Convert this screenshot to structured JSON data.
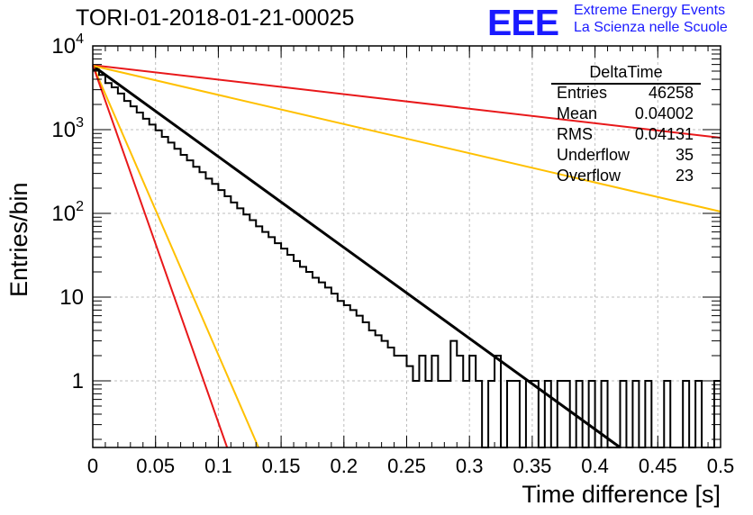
{
  "header": {
    "title": "TORI-01-2018-01-21-00025",
    "logo_text": "EEE",
    "logo_line1": "Extreme Energy Events",
    "logo_line2": "La Scienza nelle Scuole"
  },
  "stats_box": {
    "title": "DeltaTime",
    "rows": [
      {
        "key": "Entries",
        "value": "46258"
      },
      {
        "key": "Mean",
        "value": "0.04002"
      },
      {
        "key": "RMS",
        "value": "0.04131"
      },
      {
        "key": "Underflow",
        "value": "35"
      },
      {
        "key": "Overflow",
        "value": "23"
      }
    ]
  },
  "colors": {
    "histogram": "#000000",
    "fit_main": "#000000",
    "fit_red": "#e8181a",
    "fit_orange": "#ffc000",
    "grid": "#bdbdbd",
    "logo": "#1a1aff"
  },
  "chart_data": {
    "type": "line",
    "xlabel": "Time difference [s]",
    "ylabel": "Entries/bin",
    "xlim": [
      0,
      0.5
    ],
    "ylim": [
      0.16,
      10000
    ],
    "ylog": true,
    "grid": true,
    "x_ticks": [
      "0",
      "0.05",
      "0.1",
      "0.15",
      "0.2",
      "0.25",
      "0.3",
      "0.35",
      "0.4",
      "0.45",
      "0.5"
    ],
    "y_ticks": [
      "1",
      "10",
      "10^2",
      "10^3",
      "10^4"
    ],
    "histogram": {
      "bin_width": 0.005,
      "counts": [
        5200,
        4500,
        3600,
        3200,
        2700,
        2200,
        1900,
        1600,
        1350,
        1150,
        980,
        820,
        700,
        590,
        500,
        430,
        360,
        310,
        260,
        225,
        190,
        160,
        135,
        115,
        97,
        83,
        70,
        60,
        52,
        44,
        38,
        32,
        27,
        23,
        20,
        17,
        15,
        13,
        11,
        9,
        8,
        7,
        6,
        5,
        4,
        3.5,
        3,
        2.5,
        2,
        2,
        1.5,
        1,
        2,
        1,
        2,
        1,
        1,
        3,
        2,
        1,
        2,
        1,
        0,
        1,
        2,
        0,
        1,
        1,
        0,
        1,
        1,
        0,
        1,
        0,
        1,
        1,
        0,
        1,
        0,
        1,
        0,
        1,
        0,
        0,
        1,
        0,
        1,
        0,
        1,
        0,
        0,
        1,
        0,
        0,
        1,
        0,
        1,
        0,
        0,
        1
      ]
    },
    "fits": [
      {
        "color": "fit_main",
        "x": [
          0,
          0.42
        ],
        "y": [
          5800,
          0.16
        ]
      },
      {
        "color": "fit_red",
        "x": [
          0,
          0.5
        ],
        "y": [
          5900,
          800
        ]
      },
      {
        "color": "fit_orange",
        "x": [
          0,
          0.5
        ],
        "y": [
          5800,
          105
        ]
      },
      {
        "color": "fit_orange",
        "x": [
          0,
          0.132
        ],
        "y": [
          5900,
          0.16
        ]
      },
      {
        "color": "fit_red",
        "x": [
          0,
          0.107
        ],
        "y": [
          5900,
          0.16
        ]
      }
    ]
  }
}
